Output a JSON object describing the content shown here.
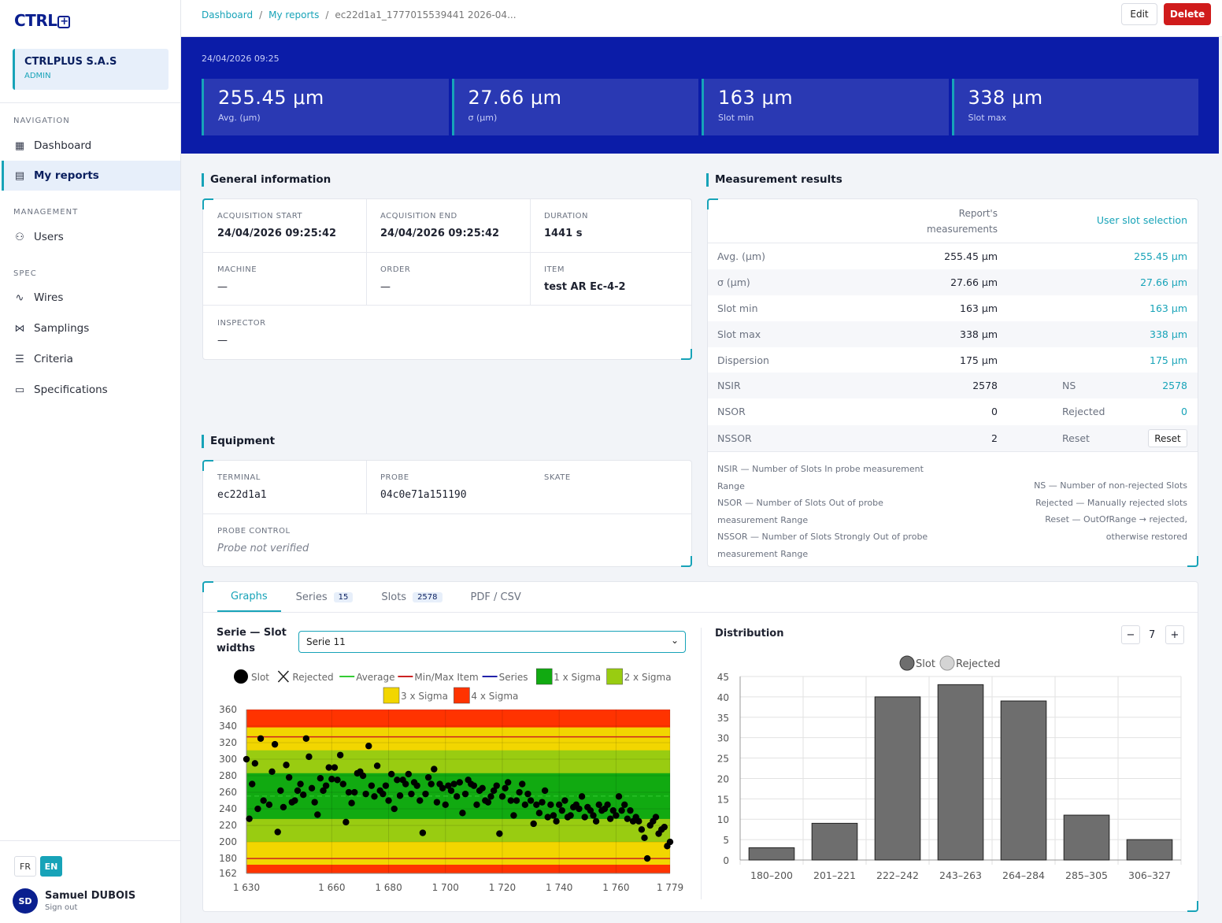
{
  "brand": {
    "logo": "CTRL"
  },
  "org": {
    "name": "CTRLPLUS S.A.S",
    "role": "ADMIN"
  },
  "nav": {
    "section_navigation": "NAVIGATION",
    "dashboard": "Dashboard",
    "my_reports": "My reports",
    "section_management": "MANAGEMENT",
    "users": "Users",
    "section_spec": "SPEC",
    "wires": "Wires",
    "samplings": "Samplings",
    "criteria": "Criteria",
    "specifications": "Specifications"
  },
  "langs": [
    "FR",
    "EN"
  ],
  "user": {
    "initials": "SD",
    "name": "Samuel DUBOIS",
    "signout": "Sign out"
  },
  "breadcrumb": {
    "dashboard": "Dashboard",
    "reports": "My reports",
    "current": "ec22d1a1_1777015539441 2026-04..."
  },
  "actions": {
    "edit": "Edit",
    "delete": "Delete"
  },
  "hero": {
    "date": "24/04/2026 09:25",
    "kpis": [
      {
        "value": "255.45 μm",
        "label": "Avg. (μm)"
      },
      {
        "value": "27.66 μm",
        "label": "σ (μm)"
      },
      {
        "value": "163 μm",
        "label": "Slot min"
      },
      {
        "value": "338 μm",
        "label": "Slot max"
      }
    ]
  },
  "general": {
    "title": "General information",
    "acq_start_label": "ACQUISITION START",
    "acq_start": "24/04/2026 09:25:42",
    "acq_end_label": "ACQUISITION END",
    "acq_end": "24/04/2026 09:25:42",
    "duration_label": "DURATION",
    "duration": "1441 s",
    "machine_label": "MACHINE",
    "machine": "—",
    "order_label": "ORDER",
    "order": "—",
    "item_label": "ITEM",
    "item": "test AR Ec-4-2",
    "inspector_label": "INSPECTOR",
    "inspector": "—"
  },
  "equipment": {
    "title": "Equipment",
    "terminal_label": "TERMINAL",
    "terminal": "ec22d1a1",
    "probe_label": "PROBE",
    "probe": "04c0e71a151190",
    "skate_label": "SKATE",
    "probe_control_label": "PROBE CONTROL",
    "probe_control": "Probe not verified"
  },
  "results": {
    "title": "Measurement results",
    "col_report": "Report's\nmeasurements",
    "col_user": "User slot selection",
    "rows": [
      {
        "label": "Avg. (μm)",
        "report": "255.45 μm",
        "mid": "",
        "user": "255.45 μm"
      },
      {
        "label": "σ (μm)",
        "report": "27.66 μm",
        "mid": "",
        "user": "27.66 μm"
      },
      {
        "label": "Slot min",
        "report": "163 μm",
        "mid": "",
        "user": "163 μm"
      },
      {
        "label": "Slot max",
        "report": "338 μm",
        "mid": "",
        "user": "338 μm"
      },
      {
        "label": "Dispersion",
        "report": "175 μm",
        "mid": "",
        "user": "175 μm"
      },
      {
        "label": "NSIR",
        "report": "2578",
        "mid": "NS",
        "user": "2578"
      },
      {
        "label": "NSOR",
        "report": "0",
        "mid": "Rejected",
        "user": "0"
      },
      {
        "label": "NSSOR",
        "report": "2",
        "mid": "Reset",
        "user": ""
      }
    ],
    "reset_button": "Reset",
    "legend_left": [
      {
        "k": "NSIR",
        "d": "Number of Slots In probe measurement Range"
      },
      {
        "k": "NSOR",
        "d": "Number of Slots Out of probe measurement Range"
      },
      {
        "k": "NSSOR",
        "d": "Number of Slots Strongly Out of probe measurement Range"
      }
    ],
    "legend_right": [
      {
        "k": "NS",
        "d": "Number of non-rejected Slots"
      },
      {
        "k": "Rejected",
        "d": "Manually rejected slots"
      },
      {
        "k": "Reset",
        "d": "OutOfRange → rejected, otherwise restored"
      }
    ]
  },
  "tabs": [
    {
      "label": "Graphs",
      "count": ""
    },
    {
      "label": "Series",
      "count": "15"
    },
    {
      "label": "Slots",
      "count": "2578"
    },
    {
      "label": "PDF / CSV",
      "count": ""
    }
  ],
  "graphs": {
    "serie_label": "Serie — Slot widths",
    "serie_selected": "Serie 11",
    "dist_title": "Distribution",
    "dist_step": "7"
  },
  "chart_data": [
    {
      "type": "scatter",
      "legend": [
        "Slot",
        "Rejected",
        "Average",
        "Min/Max Item",
        "Series",
        "1 x Sigma",
        "2 x Sigma",
        "3 x Sigma",
        "4 x Sigma"
      ],
      "colors": {
        "slot": "#000000",
        "average": "#33cc33",
        "minmax": "#cc2222",
        "series": "#2222aa",
        "sigma1": "#11aa11",
        "sigma2": "#99cc11",
        "sigma3": "#f2d600",
        "sigma4": "#ff3300"
      },
      "xlim": [
        1630,
        1779
      ],
      "ylim": [
        162,
        360
      ],
      "xticks": [
        "1 630",
        "1 660",
        "1 680",
        "1 700",
        "1 720",
        "1 740",
        "1 760",
        "1 779"
      ],
      "yticks": [
        "360",
        "340",
        "320",
        "300",
        "280",
        "260",
        "240",
        "220",
        "200",
        "180",
        "162"
      ],
      "minmax_lines": [
        327,
        180
      ],
      "average": 255.45,
      "sigma": 27.66,
      "series": [
        {
          "name": "Slot",
          "x": [
            1630,
            1631,
            1632,
            1633,
            1634,
            1635,
            1636,
            1638,
            1639,
            1640,
            1641,
            1642,
            1643,
            1644,
            1645,
            1646,
            1647,
            1648,
            1649,
            1650,
            1651,
            1652,
            1653,
            1654,
            1655,
            1656,
            1657,
            1658,
            1659,
            1660,
            1661,
            1662,
            1663,
            1664,
            1665,
            1666,
            1667,
            1668,
            1669,
            1670,
            1671,
            1672,
            1673,
            1674,
            1675,
            1676,
            1677,
            1678,
            1679,
            1680,
            1681,
            1682,
            1683,
            1684,
            1685,
            1686,
            1687,
            1688,
            1689,
            1690,
            1691,
            1692,
            1693,
            1694,
            1695,
            1696,
            1697,
            1698,
            1699,
            1700,
            1701,
            1702,
            1703,
            1704,
            1705,
            1706,
            1707,
            1708,
            1709,
            1710,
            1711,
            1712,
            1713,
            1714,
            1715,
            1716,
            1717,
            1718,
            1719,
            1720,
            1721,
            1722,
            1723,
            1724,
            1725,
            1726,
            1727,
            1728,
            1729,
            1730,
            1731,
            1732,
            1733,
            1734,
            1735,
            1736,
            1737,
            1738,
            1739,
            1740,
            1741,
            1742,
            1743,
            1744,
            1745,
            1746,
            1747,
            1748,
            1749,
            1750,
            1751,
            1752,
            1753,
            1754,
            1755,
            1756,
            1757,
            1758,
            1759,
            1760,
            1761,
            1762,
            1763,
            1764,
            1765,
            1766,
            1767,
            1768,
            1769,
            1770,
            1771,
            1772,
            1773,
            1774,
            1775,
            1776,
            1777,
            1778,
            1779
          ],
          "y": [
            300,
            228,
            270,
            295,
            240,
            325,
            250,
            245,
            285,
            318,
            212,
            262,
            242,
            293,
            278,
            248,
            250,
            262,
            270,
            257,
            325,
            303,
            265,
            248,
            233,
            277,
            262,
            268,
            290,
            276,
            290,
            275,
            305,
            270,
            224,
            260,
            247,
            260,
            283,
            285,
            280,
            258,
            316,
            268,
            255,
            292,
            262,
            258,
            268,
            250,
            282,
            240,
            275,
            256,
            275,
            270,
            282,
            258,
            272,
            268,
            250,
            211,
            258,
            278,
            270,
            288,
            248,
            270,
            265,
            245,
            268,
            262,
            270,
            255,
            272,
            235,
            258,
            275,
            270,
            268,
            245,
            262,
            265,
            250,
            248,
            255,
            262,
            268,
            210,
            255,
            265,
            272,
            250,
            232,
            250,
            260,
            270,
            245,
            258,
            250,
            222,
            245,
            235,
            248,
            262,
            230,
            245,
            232,
            225,
            245,
            238,
            250,
            230,
            232,
            242,
            245,
            240,
            255,
            230,
            242,
            238,
            232,
            225,
            245,
            238,
            240,
            245,
            228,
            238,
            232,
            255,
            238,
            245,
            228,
            238,
            225,
            230,
            225,
            215,
            205,
            180,
            220,
            225,
            230,
            210,
            215,
            218,
            195,
            200
          ]
        }
      ]
    },
    {
      "type": "bar",
      "legend": [
        "Slot",
        "Rejected"
      ],
      "categories": [
        "180–200",
        "201–221",
        "222–242",
        "243–263",
        "264–284",
        "285–305",
        "306–327"
      ],
      "series": [
        {
          "name": "Slot",
          "values": [
            3,
            9,
            40,
            43,
            39,
            11,
            5
          ]
        }
      ],
      "ylim": [
        0,
        45
      ],
      "yticks": [
        "45",
        "40",
        "35",
        "30",
        "25",
        "20",
        "15",
        "10",
        "5",
        "0"
      ],
      "color": "#6e6e6e"
    }
  ]
}
